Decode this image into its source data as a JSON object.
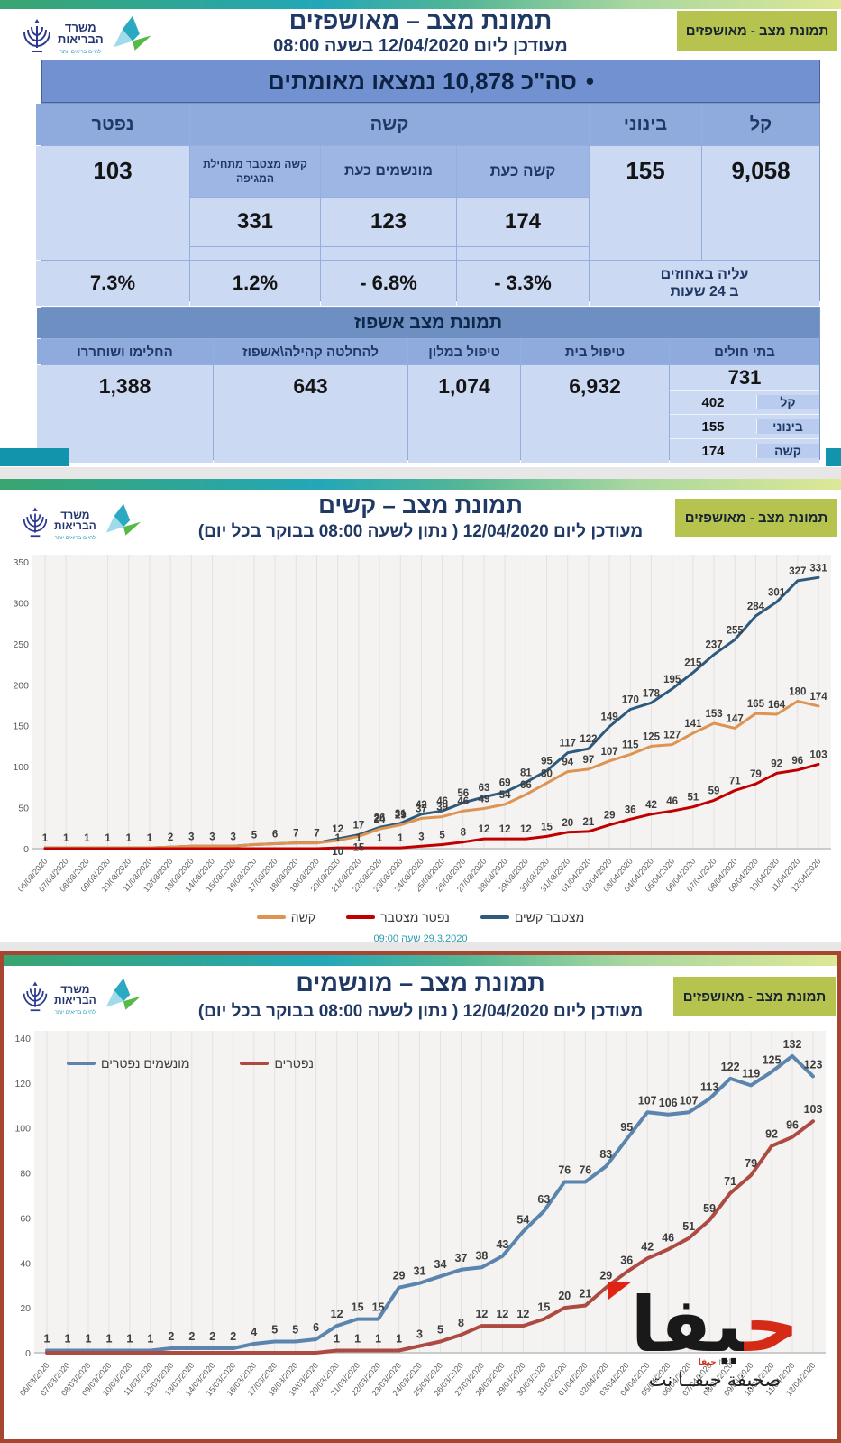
{
  "global": {
    "badge": "תמונת מצב - מאושפזים",
    "logo": {
      "ministry_top": "משרד",
      "ministry_bottom": "הבריאות",
      "tagline": "לחיים בריאים יותר"
    }
  },
  "slide1": {
    "title": "תמונת מצב – מאושפזים",
    "subtitle": "מעודכן ליום 12/04/2020 בשעה 08:00",
    "banner_bullet": "•",
    "banner": "סה\"כ 10,878 נמצאו מאומתים",
    "table1": {
      "col_kal": "קל",
      "col_beinoni": "בינוני",
      "col_kashe": "קשה",
      "col_niftar": "נפטר",
      "sub_kashe_now": "קשה כעת",
      "sub_ventilated_now": "מונשמים כעת",
      "sub_kashe_cum": "קשה מצטבר מתחילת המגיפה",
      "val_kal": "9,058",
      "val_beinoni": "155",
      "val_kashe_now": "174",
      "val_ventilated_now": "123",
      "val_kashe_cum": "331",
      "val_niftar": "103",
      "pct_label_1": "עליה באחוזים",
      "pct_label_2": "ב 24 שעות",
      "pct_kashe_now": "- 3.3%",
      "pct_ventilated_now": "- 6.8%",
      "pct_kashe_cum": "1.2%",
      "pct_niftar": "7.3%"
    },
    "table2": {
      "title": "תמונת מצב אשפוז",
      "cols": [
        "בתי חולים",
        "טיפול בית",
        "טיפול במלון",
        "להחלטה קהילה\\אשפוז",
        "החלימו ושוחררו"
      ],
      "vals": [
        "731",
        "6,932",
        "1,074",
        "643",
        "1,388"
      ],
      "hospital_breakdown": [
        {
          "label": "קל",
          "value": "402"
        },
        {
          "label": "בינוני",
          "value": "155"
        },
        {
          "label": "קשה",
          "value": "174"
        }
      ]
    }
  },
  "slide2": {
    "title": "תמונת מצב – קשים",
    "subtitle": "מעודכן ליום 12/04/2020 ( נתון לשעה 08:00 בבוקר בכל יום)",
    "footer": "29.3.2020 שעה 09:00"
  },
  "slide3": {
    "title": "תמונת מצב – מונשמים",
    "subtitle": "מעודכן ליום 12/04/2020 ( נתון לשעה 08:00 בבוקר בכל יום)",
    "watermark": {
      "big_first": "ح",
      "big_rest": "يفا",
      "mini_red": "حيفا",
      "mini_net": "net",
      "sub": "صحيفة حيفــا نت"
    }
  },
  "chart_data": [
    {
      "type": "line",
      "title": "תמונת מצב – קשים",
      "x": [
        "06/03/2020",
        "07/03/2020",
        "08/03/2020",
        "09/03/2020",
        "10/03/2020",
        "11/03/2020",
        "12/03/2020",
        "13/03/2020",
        "14/03/2020",
        "15/03/2020",
        "16/03/2020",
        "17/03/2020",
        "18/03/2020",
        "19/03/2020",
        "20/03/2020",
        "21/03/2020",
        "22/03/2020",
        "23/03/2020",
        "24/03/2020",
        "25/03/2020",
        "26/03/2020",
        "27/03/2020",
        "28/03/2020",
        "29/03/2020",
        "30/03/2020",
        "31/03/2020",
        "01/04/2020",
        "02/04/2020",
        "03/04/2020",
        "04/04/2020",
        "05/04/2020",
        "06/04/2020",
        "07/04/2020",
        "08/04/2020",
        "09/04/2020",
        "10/04/2020",
        "11/04/2020",
        "12/04/2020"
      ],
      "ylim": [
        0,
        350
      ],
      "ytick": 50,
      "grid": "vertical",
      "legend_position": "bottom",
      "series": [
        {
          "name": "מצטבר קשים",
          "color": "#2e5a7d",
          "values": [
            1,
            1,
            1,
            1,
            1,
            1,
            2,
            3,
            3,
            3,
            5,
            6,
            7,
            7,
            12,
            17,
            26,
            31,
            42,
            46,
            56,
            63,
            69,
            81,
            95,
            117,
            122,
            149,
            170,
            178,
            195,
            215,
            237,
            255,
            284,
            301,
            327,
            331
          ]
        },
        {
          "name": "קשה",
          "color": "#dd9453",
          "values": [
            1,
            1,
            1,
            1,
            1,
            1,
            2,
            3,
            3,
            3,
            5,
            6,
            7,
            7,
            10,
            15,
            24,
            29,
            37,
            39,
            46,
            49,
            54,
            66,
            80,
            94,
            97,
            107,
            115,
            125,
            127,
            141,
            153,
            147,
            165,
            164,
            180,
            174
          ]
        },
        {
          "name": "נפטר מצטבר",
          "color": "#c00000",
          "values": [
            0,
            0,
            0,
            0,
            0,
            0,
            0,
            0,
            0,
            0,
            0,
            0,
            0,
            0,
            1,
            1,
            1,
            1,
            3,
            5,
            8,
            12,
            12,
            12,
            15,
            20,
            21,
            29,
            36,
            42,
            46,
            51,
            59,
            71,
            79,
            92,
            96,
            103
          ]
        }
      ]
    },
    {
      "type": "line",
      "title": "תמונת מצב – מונשמים",
      "x": [
        "06/03/2020",
        "07/03/2020",
        "08/03/2020",
        "09/03/2020",
        "10/03/2020",
        "11/03/2020",
        "12/03/2020",
        "13/03/2020",
        "14/03/2020",
        "15/03/2020",
        "16/03/2020",
        "17/03/2020",
        "18/03/2020",
        "19/03/2020",
        "20/03/2020",
        "21/03/2020",
        "22/03/2020",
        "23/03/2020",
        "24/03/2020",
        "25/03/2020",
        "26/03/2020",
        "27/03/2020",
        "28/03/2020",
        "29/03/2020",
        "30/03/2020",
        "31/03/2020",
        "01/04/2020",
        "02/04/2020",
        "03/04/2020",
        "04/04/2020",
        "05/04/2020",
        "06/04/2020",
        "07/04/2020",
        "08/04/2020",
        "09/04/2020",
        "10/04/2020",
        "11/04/2020",
        "12/04/2020"
      ],
      "ylim": [
        0,
        140
      ],
      "ytick": 20,
      "grid": "vertical",
      "legend_position": "top-left",
      "series": [
        {
          "name": "מונשמים נפטרים",
          "color": "#5b84ae",
          "values": [
            1,
            1,
            1,
            1,
            1,
            1,
            2,
            2,
            2,
            2,
            4,
            5,
            5,
            6,
            12,
            15,
            15,
            29,
            31,
            34,
            37,
            38,
            43,
            54,
            63,
            76,
            76,
            83,
            95,
            107,
            106,
            107,
            113,
            122,
            119,
            125,
            132,
            123
          ]
        },
        {
          "name": "נפטרים",
          "color": "#ad4a42",
          "values": [
            0,
            0,
            0,
            0,
            0,
            0,
            0,
            0,
            0,
            0,
            0,
            0,
            0,
            0,
            1,
            1,
            1,
            1,
            3,
            5,
            8,
            12,
            12,
            12,
            15,
            20,
            21,
            29,
            36,
            42,
            46,
            51,
            59,
            71,
            79,
            92,
            96,
            103
          ]
        }
      ]
    }
  ]
}
